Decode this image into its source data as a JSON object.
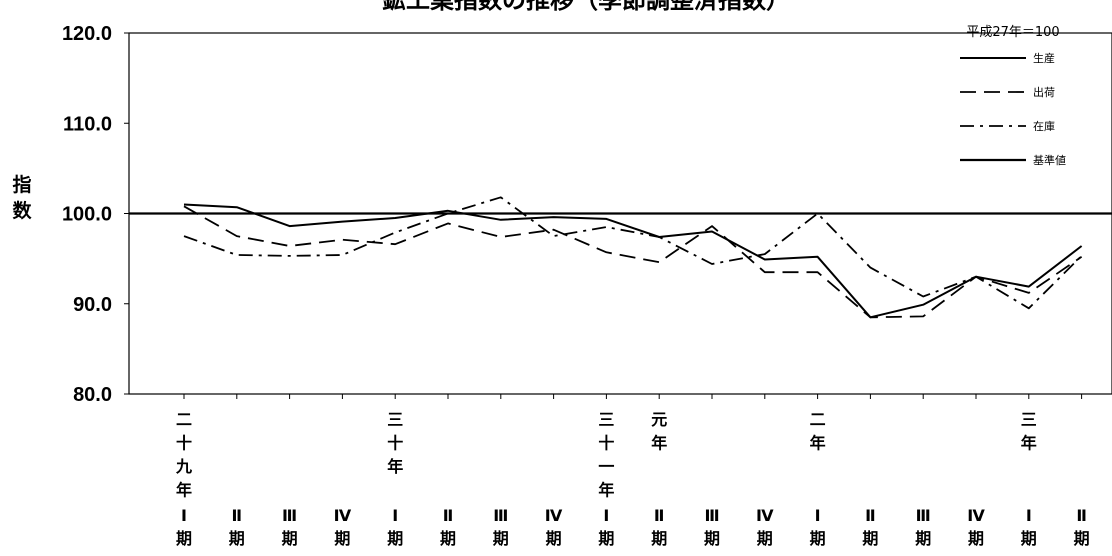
{
  "chart_data": {
    "type": "line",
    "title": "鉱工業指数の推移（季節調整済指数）",
    "base_note": "平成27年＝100",
    "ylabel": "指数",
    "ylim": [
      80,
      120
    ],
    "yticks": [
      "120.0",
      "110.0",
      "100.0",
      "90.0",
      "80.0"
    ],
    "grid": false,
    "legend_position": "top-right",
    "categories": [
      {
        "year": "二十九年",
        "q": "Ⅰ期"
      },
      {
        "year": "",
        "q": "Ⅱ期"
      },
      {
        "year": "",
        "q": "Ⅲ期"
      },
      {
        "year": "",
        "q": "Ⅳ期"
      },
      {
        "year": "三十年",
        "q": "Ⅰ期"
      },
      {
        "year": "",
        "q": "Ⅱ期"
      },
      {
        "year": "",
        "q": "Ⅲ期"
      },
      {
        "year": "",
        "q": "Ⅳ期"
      },
      {
        "year": "三十一年",
        "q": "Ⅰ期"
      },
      {
        "year": "元年",
        "q": "Ⅱ期"
      },
      {
        "year": "",
        "q": "Ⅲ期"
      },
      {
        "year": "",
        "q": "Ⅳ期"
      },
      {
        "year": "二年",
        "q": "Ⅰ期"
      },
      {
        "year": "",
        "q": "Ⅱ期"
      },
      {
        "year": "",
        "q": "Ⅲ期"
      },
      {
        "year": "",
        "q": "Ⅳ期"
      },
      {
        "year": "三年",
        "q": "Ⅰ期"
      },
      {
        "year": "",
        "q": "Ⅱ期"
      }
    ],
    "series": [
      {
        "name": "生産",
        "style": "solid",
        "values": [
          101.0,
          100.7,
          98.6,
          99.1,
          99.5,
          100.3,
          99.3,
          99.6,
          99.4,
          97.4,
          98.0,
          94.9,
          95.2,
          88.5,
          89.9,
          93.0,
          91.9,
          96.4
        ]
      },
      {
        "name": "出荷",
        "style": "dashed",
        "values": [
          100.8,
          97.5,
          96.4,
          97.1,
          96.6,
          98.9,
          97.4,
          98.2,
          95.7,
          94.6,
          98.6,
          93.5,
          93.5,
          88.5,
          88.6,
          93.0,
          91.2,
          95.2
        ]
      },
      {
        "name": "在庫",
        "style": "dashdot",
        "values": [
          97.5,
          95.4,
          95.3,
          95.4,
          97.9,
          100.0,
          101.8,
          97.5,
          98.5,
          97.4,
          94.4,
          95.5,
          100.0,
          94.0,
          90.8,
          93.0,
          89.5,
          95.3
        ]
      },
      {
        "name": "基準値",
        "style": "solid-thick",
        "constant": 100
      }
    ]
  }
}
